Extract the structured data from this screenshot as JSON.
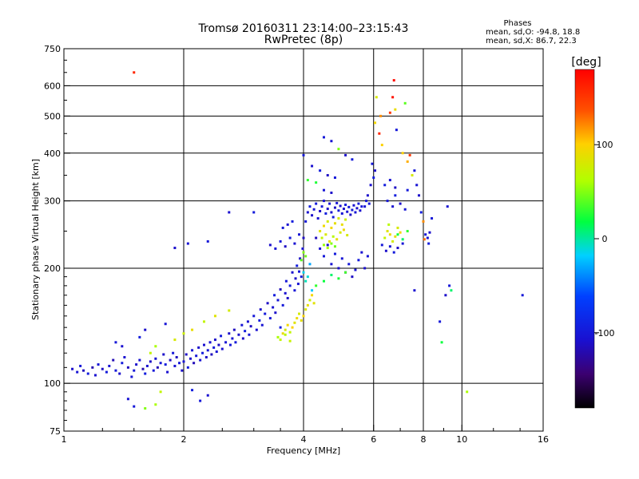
{
  "chart_data": {
    "type": "scatter",
    "title": "Tromsø 20160311 23:14:00–23:15:43",
    "subtitle": "RwPretec (8p)",
    "xlabel": "Frequency [MHz]",
    "ylabel": "Stationary phase Virtual Height [km]",
    "x_scale": "log2",
    "y_scale": "log",
    "xlim": [
      1,
      16
    ],
    "ylim": [
      75,
      750
    ],
    "x_ticks": [
      1,
      2,
      4,
      6,
      8,
      10,
      16
    ],
    "x_tick_labels": [
      "1",
      "2",
      "4",
      "6",
      "8",
      "10",
      "16"
    ],
    "y_ticks": [
      75,
      100,
      200,
      300,
      400,
      500,
      600,
      750
    ],
    "y_tick_labels": [
      "75",
      "100",
      "200",
      "300",
      "400",
      "500",
      "600",
      "750"
    ],
    "grid": true,
    "grid_lines_x": [
      2,
      4,
      6,
      8,
      10
    ],
    "grid_lines_y": [
      100,
      200,
      300,
      400,
      500,
      600
    ],
    "phase_box": {
      "heading": "Phases",
      "line_o": "mean, sd,O: -94.8, 18.8",
      "line_x": "mean, sd,X:  86.7, 22.3"
    },
    "colorbar": {
      "label": "[deg]",
      "range": [
        -180,
        180
      ],
      "ticks": [
        100,
        0,
        -100
      ],
      "tick_labels": [
        "100",
        "0",
        "-100"
      ],
      "colormap": "rainbow"
    },
    "note": "Thousands of small echo points colored by phase; representative points listed as [frequency MHz, height km, phase deg].",
    "points": [
      [
        1.05,
        109,
        -110
      ],
      [
        1.08,
        107,
        -105
      ],
      [
        1.1,
        111,
        -100
      ],
      [
        1.12,
        108,
        -115
      ],
      [
        1.15,
        106,
        -95
      ],
      [
        1.18,
        110,
        -120
      ],
      [
        1.2,
        105,
        -108
      ],
      [
        1.22,
        112,
        -102
      ],
      [
        1.25,
        109,
        -112
      ],
      [
        1.28,
        107,
        -98
      ],
      [
        1.3,
        111,
        -105
      ],
      [
        1.33,
        115,
        -118
      ],
      [
        1.35,
        108,
        -101
      ],
      [
        1.38,
        106,
        -110
      ],
      [
        1.4,
        113,
        -96
      ],
      [
        1.42,
        117,
        -108
      ],
      [
        1.45,
        110,
        -115
      ],
      [
        1.48,
        104,
        -103
      ],
      [
        1.5,
        108,
        -99
      ],
      [
        1.52,
        112,
        -110
      ],
      [
        1.55,
        115,
        -105
      ],
      [
        1.58,
        109,
        -120
      ],
      [
        1.6,
        106,
        -95
      ],
      [
        1.62,
        111,
        -107
      ],
      [
        1.65,
        114,
        -112
      ],
      [
        1.68,
        108,
        -100
      ],
      [
        1.7,
        116,
        -105
      ],
      [
        1.72,
        110,
        -118
      ],
      [
        1.75,
        113,
        -102
      ],
      [
        1.78,
        119,
        -110
      ],
      [
        1.8,
        112,
        -95
      ],
      [
        1.82,
        107,
        -108
      ],
      [
        1.85,
        115,
        -113
      ],
      [
        1.88,
        120,
        -100
      ],
      [
        1.9,
        111,
        -106
      ],
      [
        1.92,
        117,
        -115
      ],
      [
        1.95,
        113,
        -99
      ],
      [
        1.98,
        108,
        -110
      ],
      [
        2.0,
        114,
        -104
      ],
      [
        2.03,
        119,
        -112
      ],
      [
        2.05,
        110,
        -97
      ],
      [
        2.08,
        116,
        -109
      ],
      [
        2.1,
        122,
        -103
      ],
      [
        2.12,
        113,
        -117
      ],
      [
        2.15,
        118,
        -100
      ],
      [
        2.18,
        124,
        -110
      ],
      [
        2.2,
        115,
        -105
      ],
      [
        2.23,
        120,
        -95
      ],
      [
        2.25,
        126,
        -108
      ],
      [
        2.28,
        117,
        -112
      ],
      [
        2.3,
        122,
        -101
      ],
      [
        2.33,
        128,
        -106
      ],
      [
        2.35,
        119,
        -115
      ],
      [
        2.38,
        124,
        -99
      ],
      [
        2.4,
        130,
        -110
      ],
      [
        2.42,
        121,
        -104
      ],
      [
        2.45,
        126,
        -112
      ],
      [
        2.48,
        133,
        -97
      ],
      [
        2.5,
        123,
        -108
      ],
      [
        2.55,
        128,
        -103
      ],
      [
        2.6,
        135,
        -110
      ],
      [
        2.62,
        126,
        -100
      ],
      [
        2.65,
        131,
        -106
      ],
      [
        2.68,
        138,
        -114
      ],
      [
        2.7,
        128,
        -98
      ],
      [
        2.75,
        134,
        -109
      ],
      [
        2.8,
        142,
        -103
      ],
      [
        2.82,
        131,
        -111
      ],
      [
        2.85,
        137,
        -96
      ],
      [
        2.9,
        145,
        -107
      ],
      [
        2.92,
        134,
        -102
      ],
      [
        2.95,
        141,
        -113
      ],
      [
        3.0,
        150,
        -100
      ],
      [
        3.05,
        138,
        -108
      ],
      [
        3.1,
        146,
        -95
      ],
      [
        3.12,
        156,
        -110
      ],
      [
        3.15,
        142,
        -104
      ],
      [
        3.2,
        152,
        -98
      ],
      [
        3.25,
        162,
        -112
      ],
      [
        3.3,
        148,
        -101
      ],
      [
        3.35,
        158,
        -107
      ],
      [
        3.38,
        170,
        -96
      ],
      [
        3.4,
        153,
        -110
      ],
      [
        3.45,
        165,
        -103
      ],
      [
        3.5,
        176,
        -115
      ],
      [
        3.55,
        160,
        -99
      ],
      [
        3.6,
        172,
        -108
      ],
      [
        3.62,
        185,
        -100
      ],
      [
        3.65,
        167,
        -112
      ],
      [
        3.7,
        180,
        -97
      ],
      [
        3.75,
        195,
        -109
      ],
      [
        3.8,
        175,
        -103
      ],
      [
        3.82,
        188,
        -111
      ],
      [
        3.85,
        203,
        -96
      ],
      [
        3.88,
        182,
        -105
      ],
      [
        3.9,
        196,
        -100
      ],
      [
        3.92,
        212,
        -110
      ],
      [
        3.95,
        190,
        -95
      ],
      [
        3.98,
        225,
        -106
      ],
      [
        4.0,
        240,
        -112
      ],
      [
        4.05,
        265,
        -100
      ],
      [
        4.1,
        280,
        -108
      ],
      [
        4.15,
        290,
        -96
      ],
      [
        4.2,
        275,
        -110
      ],
      [
        4.25,
        285,
        -103
      ],
      [
        4.3,
        295,
        -98
      ],
      [
        4.35,
        270,
        -107
      ],
      [
        4.4,
        282,
        -112
      ],
      [
        4.45,
        290,
        -100
      ],
      [
        4.5,
        300,
        -105
      ],
      [
        4.55,
        278,
        -95
      ],
      [
        4.6,
        286,
        -110
      ],
      [
        4.65,
        295,
        -102
      ],
      [
        4.7,
        280,
        -108
      ],
      [
        4.75,
        272,
        -99
      ],
      [
        4.8,
        288,
        -112
      ],
      [
        4.85,
        296,
        -104
      ],
      [
        4.9,
        283,
        -97
      ],
      [
        4.95,
        291,
        -109
      ],
      [
        5.0,
        278,
        -103
      ],
      [
        5.05,
        286,
        -110
      ],
      [
        5.1,
        293,
        -96
      ],
      [
        5.15,
        281,
        -106
      ],
      [
        5.2,
        289,
        -100
      ],
      [
        5.25,
        276,
        -112
      ],
      [
        5.3,
        284,
        -98
      ],
      [
        5.35,
        292,
        -107
      ],
      [
        5.4,
        280,
        -103
      ],
      [
        5.45,
        287,
        -110
      ],
      [
        5.5,
        295,
        -95
      ],
      [
        5.55,
        283,
        -108
      ],
      [
        5.6,
        290,
        -101
      ],
      [
        4.3,
        240,
        -115
      ],
      [
        4.4,
        225,
        -108
      ],
      [
        4.5,
        215,
        -100
      ],
      [
        4.6,
        230,
        -112
      ],
      [
        4.7,
        205,
        -105
      ],
      [
        4.8,
        218,
        -97
      ],
      [
        4.9,
        200,
        -110
      ],
      [
        5.0,
        212,
        -103
      ],
      [
        5.1,
        195,
        -108
      ],
      [
        5.2,
        205,
        -100
      ],
      [
        5.3,
        190,
        -112
      ],
      [
        5.4,
        198,
        -105
      ],
      [
        5.5,
        210,
        -98
      ],
      [
        5.6,
        220,
        -107
      ],
      [
        5.7,
        200,
        -110
      ],
      [
        5.8,
        215,
        -103
      ],
      [
        3.3,
        230,
        -110
      ],
      [
        3.4,
        225,
        -105
      ],
      [
        3.5,
        235,
        -100
      ],
      [
        3.6,
        228,
        -112
      ],
      [
        3.7,
        240,
        -98
      ],
      [
        3.8,
        232,
        -107
      ],
      [
        3.9,
        245,
        -103
      ],
      [
        3.5,
        140,
        -95
      ],
      [
        3.55,
        135,
        90
      ],
      [
        3.6,
        138,
        80
      ],
      [
        3.65,
        142,
        95
      ],
      [
        3.7,
        136,
        70
      ],
      [
        3.75,
        140,
        100
      ],
      [
        3.8,
        144,
        85
      ],
      [
        3.85,
        148,
        92
      ],
      [
        3.9,
        152,
        78
      ],
      [
        3.95,
        146,
        88
      ],
      [
        4.0,
        150,
        98
      ],
      [
        4.05,
        156,
        82
      ],
      [
        4.1,
        160,
        90
      ],
      [
        4.15,
        165,
        75
      ],
      [
        4.2,
        170,
        95
      ],
      [
        4.25,
        162,
        86
      ],
      [
        3.45,
        132,
        60
      ],
      [
        3.5,
        130,
        70
      ],
      [
        3.6,
        134,
        65
      ],
      [
        3.7,
        129,
        72
      ],
      [
        4.4,
        250,
        85
      ],
      [
        4.5,
        258,
        92
      ],
      [
        4.6,
        265,
        78
      ],
      [
        4.7,
        255,
        95
      ],
      [
        4.8,
        262,
        88
      ],
      [
        4.9,
        270,
        80
      ],
      [
        5.0,
        260,
        90
      ],
      [
        5.1,
        268,
        75
      ],
      [
        4.45,
        240,
        70
      ],
      [
        4.55,
        245,
        82
      ],
      [
        4.65,
        235,
        90
      ],
      [
        4.75,
        242,
        65
      ],
      [
        4.85,
        238,
        88
      ],
      [
        4.95,
        248,
        78
      ],
      [
        5.05,
        252,
        93
      ],
      [
        5.15,
        244,
        80
      ],
      [
        4.5,
        230,
        55
      ],
      [
        4.6,
        226,
        60
      ],
      [
        4.7,
        232,
        50
      ],
      [
        4.8,
        228,
        45
      ],
      [
        4.2,
        175,
        -20
      ],
      [
        4.1,
        190,
        -10
      ],
      [
        4.15,
        205,
        -30
      ],
      [
        4.05,
        185,
        -5
      ],
      [
        4.0,
        195,
        -15
      ],
      [
        4.3,
        180,
        30
      ],
      [
        4.5,
        185,
        20
      ],
      [
        4.7,
        192,
        10
      ],
      [
        4.9,
        188,
        25
      ],
      [
        5.1,
        195,
        35
      ],
      [
        3.95,
        210,
        40
      ],
      [
        4.0,
        220,
        50
      ],
      [
        4.05,
        215,
        45
      ],
      [
        6.4,
        240,
        70
      ],
      [
        6.5,
        250,
        85
      ],
      [
        6.6,
        245,
        92
      ],
      [
        6.7,
        235,
        78
      ],
      [
        6.8,
        242,
        88
      ],
      [
        6.9,
        255,
        80
      ],
      [
        7.0,
        248,
        95
      ],
      [
        6.55,
        260,
        65
      ],
      [
        6.3,
        230,
        -100
      ],
      [
        6.45,
        222,
        -110
      ],
      [
        6.6,
        228,
        -105
      ],
      [
        6.75,
        220,
        -98
      ],
      [
        6.9,
        226,
        -112
      ],
      [
        7.1,
        232,
        -103
      ],
      [
        6.5,
        300,
        -100
      ],
      [
        6.7,
        290,
        -108
      ],
      [
        6.8,
        310,
        -95
      ],
      [
        7.0,
        295,
        -110
      ],
      [
        7.2,
        285,
        -102
      ],
      [
        6.4,
        330,
        -95
      ],
      [
        6.6,
        340,
        -105
      ],
      [
        6.8,
        325,
        -112
      ],
      [
        7.3,
        320,
        -98
      ],
      [
        6.9,
        245,
        20
      ],
      [
        7.1,
        238,
        10
      ],
      [
        7.3,
        250,
        30
      ],
      [
        5.7,
        290,
        -105
      ],
      [
        5.75,
        300,
        -100
      ],
      [
        5.8,
        310,
        -110
      ],
      [
        5.85,
        295,
        -98
      ],
      [
        5.9,
        330,
        -108
      ],
      [
        6.0,
        345,
        -95
      ],
      [
        6.05,
        360,
        -112
      ],
      [
        5.95,
        375,
        -100
      ],
      [
        6.2,
        450,
        160
      ],
      [
        6.25,
        500,
        120
      ],
      [
        6.3,
        420,
        100
      ],
      [
        6.1,
        560,
        80
      ],
      [
        6.05,
        480,
        95
      ],
      [
        6.6,
        510,
        150
      ],
      [
        6.7,
        560,
        170
      ],
      [
        6.75,
        620,
        175
      ],
      [
        6.85,
        460,
        -100
      ],
      [
        6.8,
        520,
        90
      ],
      [
        7.2,
        540,
        40
      ],
      [
        7.1,
        400,
        100
      ],
      [
        7.4,
        395,
        150
      ],
      [
        7.3,
        380,
        110
      ],
      [
        7.6,
        360,
        -100
      ],
      [
        7.5,
        350,
        80
      ],
      [
        7.7,
        330,
        -105
      ],
      [
        7.8,
        310,
        -110
      ],
      [
        7.9,
        280,
        -95
      ],
      [
        8.0,
        265,
        120
      ],
      [
        8.1,
        245,
        -100
      ],
      [
        8.2,
        240,
        -108
      ],
      [
        8.25,
        232,
        -95
      ],
      [
        8.3,
        248,
        -110
      ],
      [
        8.05,
        238,
        130
      ],
      [
        8.4,
        270,
        -100
      ],
      [
        9.2,
        290,
        -105
      ],
      [
        9.3,
        180,
        -100
      ],
      [
        9.1,
        170,
        -110
      ],
      [
        9.4,
        175,
        10
      ],
      [
        8.9,
        128,
        20
      ],
      [
        8.8,
        145,
        -100
      ],
      [
        7.6,
        175,
        -108
      ],
      [
        10.3,
        95,
        60
      ],
      [
        14.2,
        170,
        -100
      ],
      [
        4.5,
        440,
        -100
      ],
      [
        4.7,
        430,
        -105
      ],
      [
        4.9,
        410,
        50
      ],
      [
        5.1,
        395,
        -110
      ],
      [
        5.3,
        385,
        -98
      ],
      [
        4.0,
        395,
        -100
      ],
      [
        4.2,
        370,
        -108
      ],
      [
        4.4,
        360,
        -95
      ],
      [
        4.6,
        350,
        -112
      ],
      [
        4.8,
        345,
        -100
      ],
      [
        4.1,
        340,
        30
      ],
      [
        4.3,
        335,
        25
      ],
      [
        4.5,
        320,
        -103
      ],
      [
        4.7,
        315,
        -110
      ],
      [
        3.55,
        255,
        -100
      ],
      [
        3.65,
        260,
        -108
      ],
      [
        3.75,
        265,
        -95
      ],
      [
        1.5,
        650,
        160
      ],
      [
        1.9,
        226,
        -110
      ],
      [
        2.05,
        232,
        -105
      ],
      [
        2.3,
        235,
        -100
      ],
      [
        2.6,
        280,
        -108
      ],
      [
        3.0,
        280,
        -98
      ],
      [
        1.6,
        86,
        50
      ],
      [
        1.7,
        88,
        60
      ],
      [
        1.5,
        87,
        -100
      ],
      [
        1.45,
        91,
        -105
      ],
      [
        1.75,
        95,
        70
      ],
      [
        2.2,
        90,
        -100
      ],
      [
        2.3,
        93,
        -108
      ],
      [
        2.1,
        96,
        -95
      ],
      [
        1.65,
        120,
        70
      ],
      [
        1.7,
        125,
        60
      ],
      [
        1.9,
        130,
        80
      ],
      [
        2.0,
        135,
        75
      ],
      [
        2.1,
        138,
        90
      ],
      [
        2.25,
        145,
        70
      ],
      [
        2.4,
        150,
        85
      ],
      [
        2.6,
        155,
        78
      ],
      [
        1.35,
        128,
        -100
      ],
      [
        1.4,
        125,
        -108
      ],
      [
        1.55,
        132,
        -95
      ],
      [
        1.6,
        138,
        -110
      ],
      [
        1.8,
        143,
        -103
      ]
    ]
  }
}
